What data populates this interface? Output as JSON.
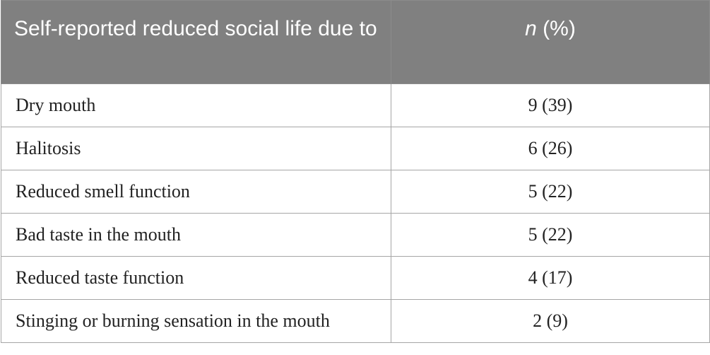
{
  "table": {
    "header": {
      "col1": "Self-reported reduced social life due to",
      "col2_italic": "n",
      "col2_rest": " (%)"
    },
    "rows": [
      {
        "label": "Dry mouth",
        "value": "9 (39)"
      },
      {
        "label": "Halitosis",
        "value": "6 (26)"
      },
      {
        "label": "Reduced smell function",
        "value": "5 (22)"
      },
      {
        "label": "Bad taste in the mouth",
        "value": "5 (22)"
      },
      {
        "label": "Reduced taste function",
        "value": "4 (17)"
      },
      {
        "label": "Stinging or burning sensation in the mouth",
        "value": "2 (9)"
      }
    ]
  }
}
